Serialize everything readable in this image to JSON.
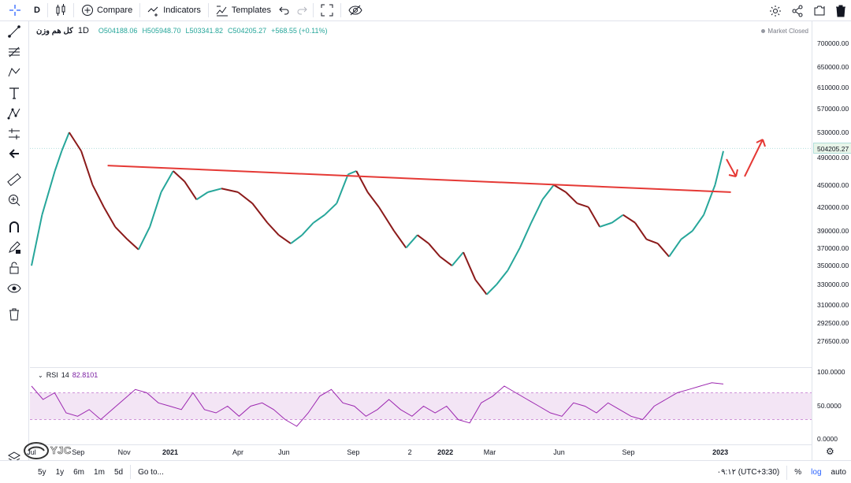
{
  "toolbar": {
    "interval": "D",
    "compare_label": "Compare",
    "indicators_label": "Indicators",
    "templates_label": "Templates"
  },
  "legend": {
    "symbol": "کل هم وزن",
    "interval": "1D",
    "open": "O504188.06",
    "high": "H505948.70",
    "low": "L503341.82",
    "close": "C504205.27",
    "change": "+568.55 (+0.11%)",
    "market_status": "Market Closed"
  },
  "rsi": {
    "name": "RSI",
    "length": "14",
    "value": "82.8101",
    "ticks": [
      "100.0000",
      "50.0000",
      "0.0000"
    ]
  },
  "price_scale": {
    "ticks": [
      "750000.00",
      "700000.00",
      "650000.00",
      "610000.00",
      "570000.00",
      "530000.00",
      "490000.00",
      "450000.00",
      "420000.00",
      "390000.00",
      "370000.00",
      "350000.00",
      "330000.00",
      "310000.00",
      "292500.00",
      "276500.00"
    ],
    "last_price": "504205.27"
  },
  "time_scale": {
    "ticks": [
      "Jul",
      "Sep",
      "Nov",
      "2021",
      "Apr",
      "Jun",
      "Sep",
      "2",
      "2022",
      "Mar",
      "Jun",
      "Sep",
      "2023"
    ],
    "clock": "۰۹:۱۲ (UTC+3:30)",
    "percent": "%",
    "log": "log",
    "auto": "auto"
  },
  "bottom_bar": {
    "ranges": [
      "5y",
      "1y",
      "6m",
      "1m",
      "5d"
    ],
    "goto": "Go to..."
  },
  "watermark": "YJC",
  "colors": {
    "up": "#26a69a",
    "down": "#8b1a1a",
    "trendline": "#e53935",
    "rsi_line": "#9c27b0",
    "rsi_band": "#f3e5f5",
    "accent": "#2962ff"
  },
  "chart_data": {
    "type": "line",
    "symbol": "کل هم وزن",
    "y_scale": "log",
    "x": [
      "2020-07-01",
      "2020-07-15",
      "2020-08-01",
      "2020-08-10",
      "2020-08-20",
      "2020-09-05",
      "2020-09-20",
      "2020-10-05",
      "2020-10-20",
      "2020-11-05",
      "2020-11-20",
      "2020-12-05",
      "2020-12-20",
      "2021-01-05",
      "2021-01-20",
      "2021-02-05",
      "2021-02-20",
      "2021-03-10",
      "2021-04-01",
      "2021-04-20",
      "2021-05-10",
      "2021-05-25",
      "2021-06-10",
      "2021-06-25",
      "2021-07-10",
      "2021-07-25",
      "2021-08-10",
      "2021-08-25",
      "2021-09-05",
      "2021-09-20",
      "2021-10-05",
      "2021-10-25",
      "2021-11-10",
      "2021-11-25",
      "2021-12-10",
      "2021-12-25",
      "2022-01-10",
      "2022-01-25",
      "2022-02-10",
      "2022-02-25",
      "2022-03-10",
      "2022-03-25",
      "2022-04-10",
      "2022-04-25",
      "2022-05-10",
      "2022-05-25",
      "2022-06-10",
      "2022-06-25",
      "2022-07-10",
      "2022-07-25",
      "2022-08-10",
      "2022-08-25",
      "2022-09-10",
      "2022-09-25",
      "2022-10-10",
      "2022-10-25",
      "2022-11-10",
      "2022-11-25",
      "2022-12-10",
      "2022-12-25",
      "2023-01-05"
    ],
    "series": [
      {
        "values": [
          350000,
          410000,
          470000,
          500000,
          530000,
          500000,
          450000,
          420000,
          395000,
          380000,
          368000,
          395000,
          440000,
          470000,
          455000,
          430000,
          440000,
          445000,
          440000,
          425000,
          400000,
          385000,
          375000,
          385000,
          400000,
          410000,
          425000,
          465000,
          470000,
          440000,
          420000,
          390000,
          370000,
          385000,
          375000,
          360000,
          350000,
          365000,
          335000,
          320000,
          330000,
          345000,
          370000,
          400000,
          430000,
          450000,
          440000,
          425000,
          420000,
          395000,
          400000,
          410000,
          400000,
          380000,
          375000,
          360000,
          380000,
          390000,
          410000,
          450000,
          500000
        ]
      }
    ],
    "trendline": {
      "from": [
        "2020-10-10",
        478000
      ],
      "to": [
        "2023-01-15",
        440000
      ]
    },
    "rsi": {
      "band": [
        30,
        70
      ],
      "values": [
        80,
        60,
        70,
        40,
        35,
        45,
        30,
        45,
        60,
        75,
        70,
        55,
        50,
        45,
        70,
        45,
        40,
        50,
        35,
        50,
        55,
        45,
        30,
        20,
        40,
        65,
        75,
        55,
        50,
        35,
        45,
        60,
        45,
        35,
        50,
        40,
        50,
        30,
        25,
        55,
        65,
        80,
        70,
        60,
        50,
        40,
        35,
        55,
        50,
        40,
        55,
        45,
        35,
        30,
        50,
        60,
        70,
        75,
        80,
        85,
        83
      ]
    }
  }
}
